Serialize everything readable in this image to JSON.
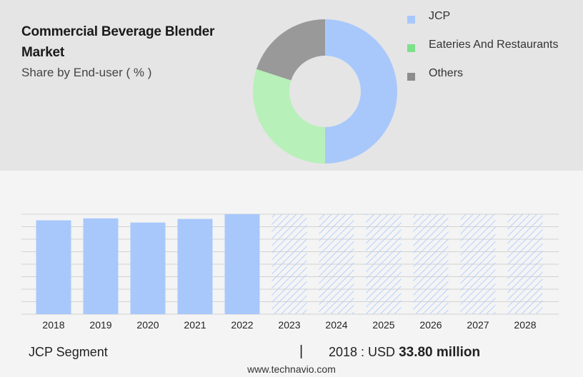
{
  "header": {
    "title": "Commercial Beverage Blender Market",
    "subtitle": "Share by End-user ( % )"
  },
  "colors": {
    "top_panel": "#e5e5e5",
    "bottom_panel": "#f4f4f4",
    "jcp": "#a8c8fc",
    "eateries": "#b7f0b8",
    "others": "#999999",
    "forecast_hatch": "#a8c8fc"
  },
  "legend": {
    "items": [
      {
        "label": "JCP",
        "swatch": "#a8c8fc"
      },
      {
        "label": "Eateries And Restaurants",
        "swatch": "#7ee08a"
      },
      {
        "label": "Others",
        "swatch": "#8c8c8c"
      }
    ]
  },
  "chart_data": [
    {
      "type": "pie",
      "donut": true,
      "title": "",
      "series": [
        {
          "name": "JCP",
          "value": 50,
          "color": "#a8c8fc"
        },
        {
          "name": "Eateries And Restaurants",
          "value": 30,
          "color": "#b7f0b8"
        },
        {
          "name": "Others",
          "value": 20,
          "color": "#999999"
        }
      ],
      "values_shown": false
    },
    {
      "type": "bar",
      "title": "",
      "categories": [
        "2018",
        "2019",
        "2020",
        "2021",
        "2022",
        "2023",
        "2024",
        "2025",
        "2026",
        "2027",
        "2028"
      ],
      "values": [
        33.8,
        34.5,
        33.0,
        34.3,
        36.0,
        null,
        null,
        null,
        null,
        null,
        null
      ],
      "forecast": [
        false,
        false,
        false,
        false,
        false,
        true,
        true,
        true,
        true,
        true,
        true
      ],
      "ylim": [
        0,
        36.0
      ],
      "grid": true,
      "y_ticks_shown": false
    }
  ],
  "footer": {
    "segment_label": "JCP Segment",
    "divider": "|",
    "value_prefix": "2018 : USD",
    "value_bold": "33.80 million",
    "source": "www.technavio.com"
  }
}
